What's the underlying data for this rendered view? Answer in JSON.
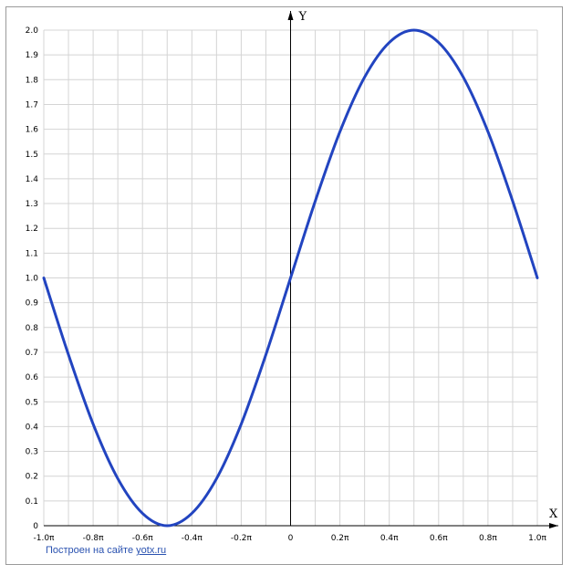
{
  "chart_data": {
    "type": "line",
    "title": "",
    "xlabel": "X",
    "ylabel": "Y",
    "xlim": [
      -1.0,
      1.0
    ],
    "ylim": [
      0,
      2.0
    ],
    "x_unit": "π",
    "x_ticks": [
      "-1.0π",
      "-0.8π",
      "-0.6π",
      "-0.4π",
      "-0.2π",
      "0",
      "0.2π",
      "0.4π",
      "0.6π",
      "0.8π",
      "1.0π"
    ],
    "y_ticks": [
      "0",
      "0.1",
      "0.2",
      "0.3",
      "0.4",
      "0.5",
      "0.6",
      "0.7",
      "0.8",
      "0.9",
      "1.0",
      "1.1",
      "1.2",
      "1.3",
      "1.4",
      "1.5",
      "1.6",
      "1.7",
      "1.8",
      "1.9",
      "2.0"
    ],
    "grid": true,
    "series": [
      {
        "color": "#2244c0",
        "x": [
          -1.0,
          -0.9,
          -0.8,
          -0.7,
          -0.6,
          -0.5,
          -0.4,
          -0.3,
          -0.2,
          -0.1,
          0.0,
          0.1,
          0.2,
          0.3,
          0.4,
          0.5,
          0.6,
          0.7,
          0.8,
          0.9,
          1.0
        ],
        "y": [
          1.0,
          0.69,
          0.41,
          0.19,
          0.05,
          0.0,
          0.05,
          0.19,
          0.41,
          0.69,
          1.0,
          1.31,
          1.59,
          1.81,
          1.95,
          2.0,
          1.95,
          1.81,
          1.59,
          1.31,
          1.0
        ]
      }
    ]
  },
  "credit": {
    "text": "Построен на сайте ",
    "link": "yotx.ru"
  }
}
